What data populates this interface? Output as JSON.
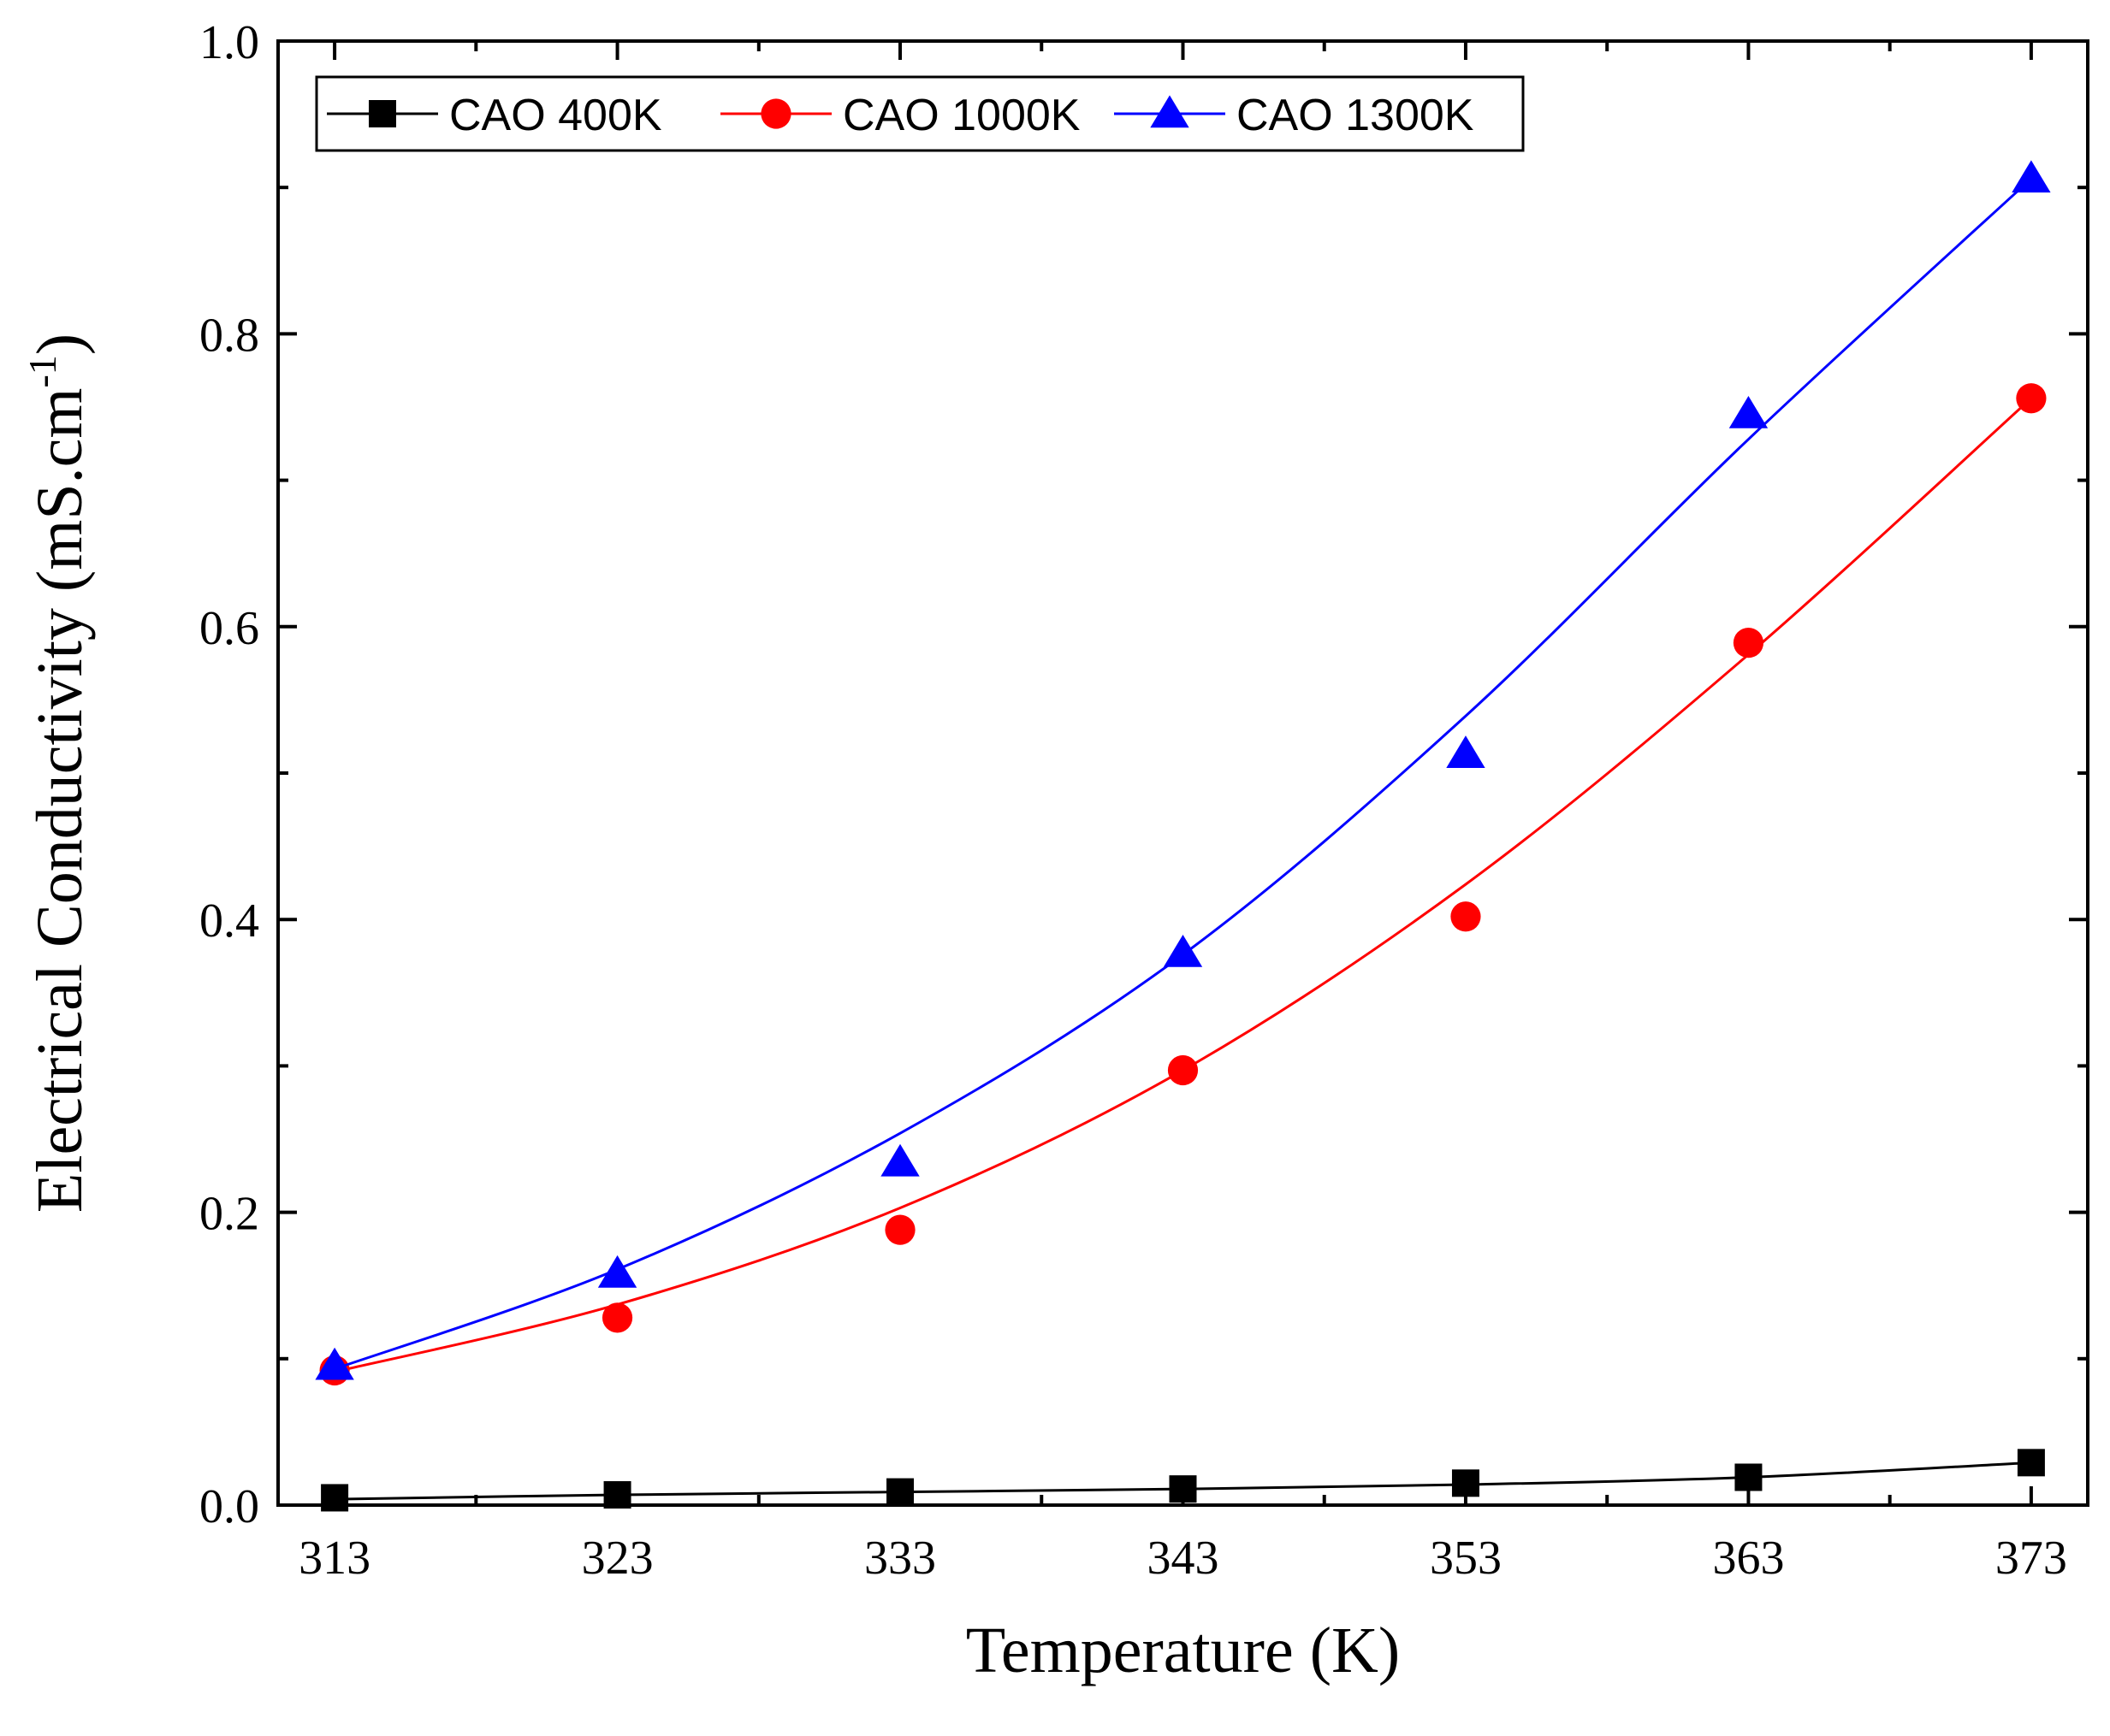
{
  "chart_data": {
    "type": "scatter",
    "xlabel": "Temperature (K)",
    "ylabel": {
      "text": "Electrical Conductivity (mS.cm",
      "superscript": "-1",
      "suffix": ")"
    },
    "x_ticks": [
      "313",
      "323",
      "333",
      "343",
      "353",
      "363",
      "373"
    ],
    "y_ticks": [
      "0.0",
      "0.2",
      "0.4",
      "0.6",
      "0.8",
      "1.0"
    ],
    "xlim": [
      311,
      375
    ],
    "ylim": [
      0,
      1.0
    ],
    "x": [
      313,
      323,
      333,
      343,
      353,
      363,
      373
    ],
    "grid": false,
    "legend_position": "top-left",
    "series": [
      {
        "name": "CAO 400K",
        "color": "#000000",
        "marker": "square",
        "values": [
          0.005,
          0.007,
          0.009,
          0.011,
          0.015,
          0.019,
          0.029
        ],
        "fit": [
          0.004,
          0.007,
          0.009,
          0.011,
          0.014,
          0.019,
          0.029
        ]
      },
      {
        "name": "CAO 1000K",
        "color": "#ff0000",
        "marker": "circle",
        "values": [
          0.092,
          0.128,
          0.188,
          0.297,
          0.402,
          0.589,
          0.756
        ],
        "fit": [
          0.091,
          0.137,
          0.203,
          0.297,
          0.424,
          0.581,
          0.756
        ]
      },
      {
        "name": "CAO 1300K",
        "color": "#0000ff",
        "marker": "triangle",
        "values": [
          0.095,
          0.158,
          0.234,
          0.377,
          0.513,
          0.745,
          0.906
        ],
        "fit": [
          0.093,
          0.161,
          0.254,
          0.376,
          0.539,
          0.728,
          0.906
        ]
      }
    ]
  }
}
